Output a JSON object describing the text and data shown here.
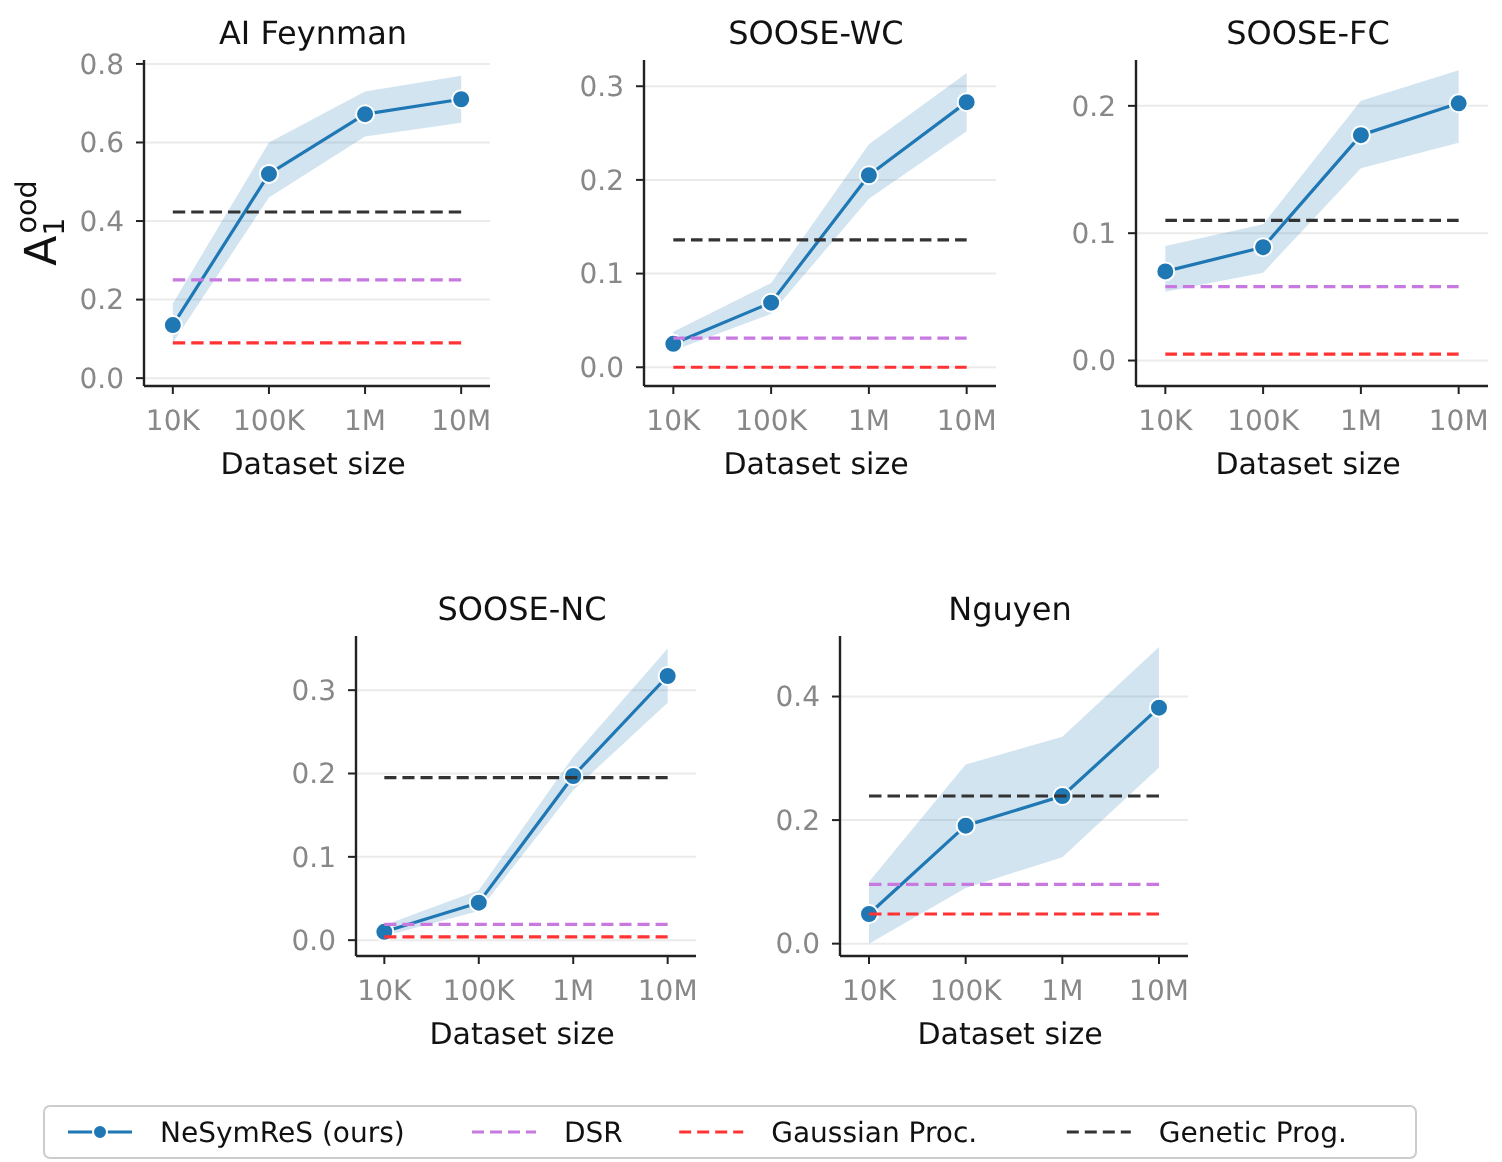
{
  "chart_data": [
    {
      "type": "line",
      "title": "AI Feynman",
      "xlabel": "Dataset size",
      "ylabel": "A$_{1}$$^{ood}$",
      "categories": [
        "10K",
        "100K",
        "1M",
        "10M"
      ],
      "ylim": [
        -0.02,
        0.81
      ],
      "yticks": [
        {
          "value": 0,
          "label": "0.0"
        },
        {
          "value": 0.2,
          "label": "0.2"
        },
        {
          "value": 0.4,
          "label": "0.4"
        },
        {
          "value": 0.6,
          "label": "0.6"
        },
        {
          "value": 0.8,
          "label": "0.8"
        }
      ],
      "grid": "y",
      "legend": "bottom",
      "series": [
        {
          "name": "NeSymReS (ours)",
          "color": "#1f77b4",
          "marker": "circle",
          "values": [
            0.135,
            0.52,
            0.672,
            0.71
          ],
          "lower": [
            0.09,
            0.46,
            0.615,
            0.65
          ],
          "upper": [
            0.19,
            0.6,
            0.73,
            0.77
          ]
        },
        {
          "name": "DSR",
          "color": "#c879e0",
          "marker": "none",
          "line_style": "dashed",
          "values": [
            0.25,
            0.25,
            0.25,
            0.25
          ]
        },
        {
          "name": "Gaussian Proc.",
          "color": "#ff3333",
          "marker": "none",
          "line_style": "dashed",
          "values": [
            0.09,
            0.09,
            0.09,
            0.09
          ]
        },
        {
          "name": "Genetic Prog.",
          "color": "#333333",
          "marker": "none",
          "line_style": "dashed",
          "values": [
            0.423,
            0.423,
            0.423,
            0.423
          ]
        }
      ]
    },
    {
      "type": "line",
      "title": "SOOSE-WC",
      "xlabel": "Dataset size",
      "categories": [
        "10K",
        "100K",
        "1M",
        "10M"
      ],
      "ylim": [
        -0.02,
        0.328
      ],
      "yticks": [
        {
          "value": 0,
          "label": "0.0"
        },
        {
          "value": 0.1,
          "label": "0.1"
        },
        {
          "value": 0.2,
          "label": "0.2"
        },
        {
          "value": 0.3,
          "label": "0.3"
        }
      ],
      "grid": "y",
      "series": [
        {
          "color": "#1f77b4",
          "marker": "circle",
          "values": [
            0.025,
            0.069,
            0.205,
            0.283
          ],
          "lower": [
            0.018,
            0.057,
            0.18,
            0.252
          ],
          "upper": [
            0.038,
            0.09,
            0.238,
            0.314
          ]
        },
        {
          "color": "#c879e0",
          "marker": "none",
          "line_style": "dashed",
          "values": [
            0.031,
            0.031,
            0.031,
            0.031
          ]
        },
        {
          "color": "#ff3333",
          "marker": "none",
          "line_style": "dashed",
          "values": [
            0,
            0,
            0,
            0
          ]
        },
        {
          "color": "#333333",
          "marker": "none",
          "line_style": "dashed",
          "values": [
            0.136,
            0.136,
            0.136,
            0.136
          ]
        }
      ]
    },
    {
      "type": "line",
      "title": "SOOSE-FC",
      "xlabel": "Dataset size",
      "categories": [
        "10K",
        "100K",
        "1M",
        "10M"
      ],
      "ylim": [
        -0.02,
        0.236
      ],
      "yticks": [
        {
          "value": 0,
          "label": "0.0"
        },
        {
          "value": 0.1,
          "label": "0.1"
        },
        {
          "value": 0.2,
          "label": "0.2"
        }
      ],
      "grid": "y",
      "series": [
        {
          "color": "#1f77b4",
          "marker": "circle",
          "values": [
            0.07,
            0.089,
            0.177,
            0.202
          ],
          "lower": [
            0.054,
            0.069,
            0.151,
            0.171
          ],
          "upper": [
            0.09,
            0.107,
            0.204,
            0.228
          ]
        },
        {
          "color": "#c879e0",
          "marker": "none",
          "line_style": "dashed",
          "values": [
            0.058,
            0.058,
            0.058,
            0.058
          ]
        },
        {
          "color": "#ff3333",
          "marker": "none",
          "line_style": "dashed",
          "values": [
            0.005,
            0.005,
            0.005,
            0.005
          ]
        },
        {
          "color": "#333333",
          "marker": "none",
          "line_style": "dashed",
          "values": [
            0.11,
            0.11,
            0.11,
            0.11
          ]
        }
      ]
    },
    {
      "type": "line",
      "title": "SOOSE-NC",
      "xlabel": "Dataset size",
      "categories": [
        "10K",
        "100K",
        "1M",
        "10M"
      ],
      "ylim": [
        -0.019,
        0.365
      ],
      "yticks": [
        {
          "value": 0,
          "label": "0.0"
        },
        {
          "value": 0.1,
          "label": "0.1"
        },
        {
          "value": 0.2,
          "label": "0.2"
        },
        {
          "value": 0.3,
          "label": "0.3"
        }
      ],
      "grid": "y",
      "series": [
        {
          "color": "#1f77b4",
          "marker": "circle",
          "values": [
            0.01,
            0.045,
            0.197,
            0.317
          ],
          "lower": [
            0.005,
            0.035,
            0.18,
            0.285
          ],
          "upper": [
            0.018,
            0.06,
            0.22,
            0.35
          ]
        },
        {
          "color": "#c879e0",
          "marker": "none",
          "line_style": "dashed",
          "values": [
            0.019,
            0.019,
            0.019,
            0.019
          ]
        },
        {
          "color": "#ff3333",
          "marker": "none",
          "line_style": "dashed",
          "values": [
            0.004,
            0.004,
            0.004,
            0.004
          ]
        },
        {
          "color": "#333333",
          "marker": "none",
          "line_style": "dashed",
          "values": [
            0.195,
            0.195,
            0.195,
            0.195
          ]
        }
      ]
    },
    {
      "type": "line",
      "title": "Nguyen",
      "xlabel": "Dataset size",
      "categories": [
        "10K",
        "100K",
        "1M",
        "10M"
      ],
      "ylim": [
        -0.02,
        0.498
      ],
      "yticks": [
        {
          "value": 0,
          "label": "0.0"
        },
        {
          "value": 0.2,
          "label": "0.2"
        },
        {
          "value": 0.4,
          "label": "0.4"
        }
      ],
      "grid": "y",
      "series": [
        {
          "color": "#1f77b4",
          "marker": "circle",
          "values": [
            0.048,
            0.191,
            0.239,
            0.382
          ],
          "lower": [
            0,
            0.09,
            0.14,
            0.285
          ],
          "upper": [
            0.1,
            0.29,
            0.335,
            0.48
          ]
        },
        {
          "color": "#c879e0",
          "marker": "none",
          "line_style": "dashed",
          "values": [
            0.096,
            0.096,
            0.096,
            0.096
          ]
        },
        {
          "color": "#ff3333",
          "marker": "none",
          "line_style": "dashed",
          "values": [
            0.048,
            0.048,
            0.048,
            0.048
          ]
        },
        {
          "color": "#333333",
          "marker": "none",
          "line_style": "dashed",
          "values": [
            0.239,
            0.239,
            0.239,
            0.239
          ]
        }
      ]
    }
  ]
}
